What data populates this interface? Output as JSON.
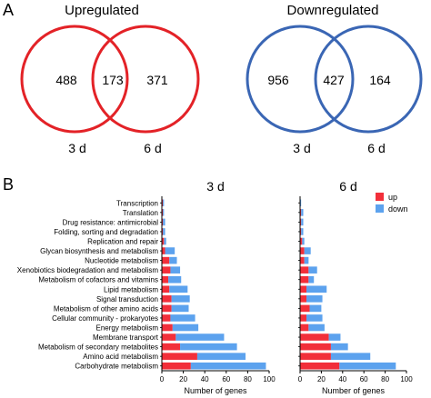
{
  "panels": {
    "a_letter": "A",
    "b_letter": "B"
  },
  "venn": [
    {
      "title": "Upregulated",
      "color": "#e32227",
      "left_only": "488",
      "overlap": "173",
      "right_only": "371",
      "left_label": "3 d",
      "right_label": "6 d"
    },
    {
      "title": "Downregulated",
      "color": "#3a66b4",
      "left_only": "956",
      "overlap": "427",
      "right_only": "164",
      "left_label": "3 d",
      "right_label": "6 d"
    }
  ],
  "legend": [
    {
      "label": "up",
      "color": "#f22f3a"
    },
    {
      "label": "down",
      "color": "#5ca2ee"
    }
  ],
  "chart_data": {
    "type": "bar",
    "orientation": "horizontal",
    "stacked": true,
    "categories": [
      "Transcription",
      "Translation",
      "Drug resistance: antimicrobial",
      "Folding, sorting and degradation",
      "Replication and repair",
      "Glycan biosynthesis and metabolism",
      "Nucleotide metabolism",
      "Xenobiotics biodegradation and metabolism",
      "Metabolism of cofactors and vitamins",
      "Lipid metabolism",
      "Signal transduction",
      "Metabolism of other amino acids",
      "Cellular community - prokaryotes",
      "Energy metabolism",
      "Membrane transport",
      "Metabolism of secondary metabolites",
      "Amino acid metabolism",
      "Carbohydrate metabolism"
    ],
    "xlabel": "Number of genes",
    "xlim": [
      0,
      100
    ],
    "xticks": [
      0,
      20,
      40,
      60,
      80,
      100
    ],
    "panels": [
      {
        "title": "3 d",
        "series": [
          {
            "name": "up",
            "values": [
              1,
              1,
              1,
              1,
              2,
              3,
              7,
              8,
              6,
              7,
              9,
              9,
              8,
              10,
              13,
              17,
              33,
              27
            ]
          },
          {
            "name": "down",
            "values": [
              1,
              1,
              2,
              2,
              2,
              9,
              7,
              9,
              12,
              17,
              17,
              16,
              23,
              24,
              45,
              53,
              45,
              70
            ]
          }
        ]
      },
      {
        "title": "6 d",
        "series": [
          {
            "name": "up",
            "values": [
              0,
              1,
              1,
              1,
              2,
              4,
              4,
              8,
              8,
              6,
              6,
              9,
              6,
              8,
              27,
              29,
              29,
              37
            ]
          },
          {
            "name": "down",
            "values": [
              1,
              2,
              2,
              2,
              2,
              6,
              4,
              8,
              5,
              19,
              15,
              11,
              15,
              15,
              11,
              16,
              37,
              53
            ]
          }
        ]
      }
    ]
  }
}
